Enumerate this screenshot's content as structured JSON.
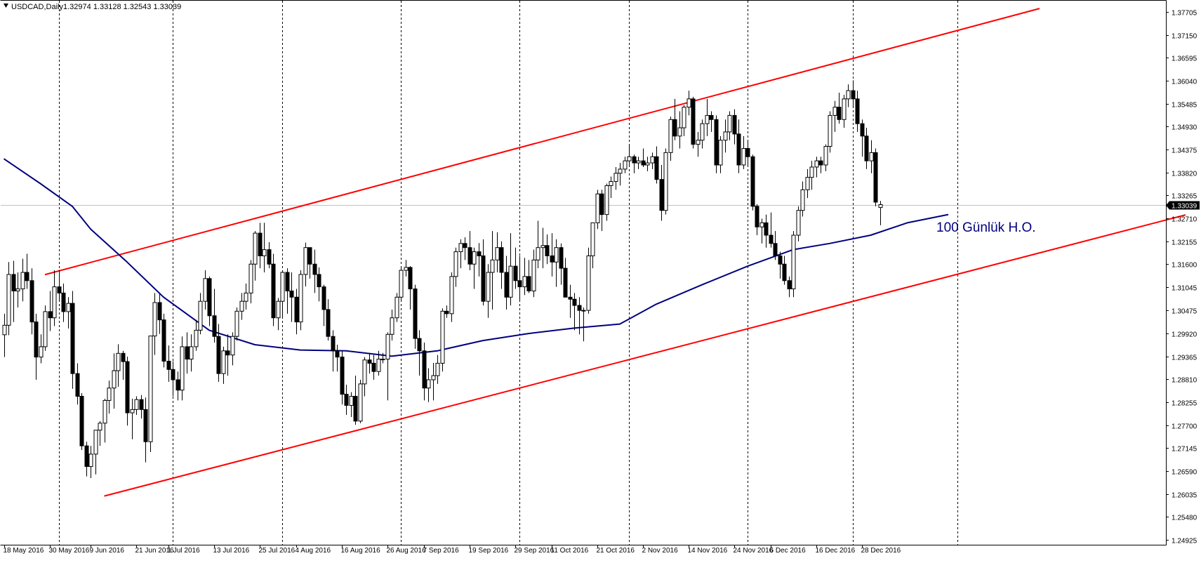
{
  "header": {
    "symbol": "USDCAD,Daily",
    "ohlc": "1.32974 1.33128 1.32543 1.33039"
  },
  "annotation": {
    "ma_label": "100 Günlük H.O."
  },
  "current_price_label": "1.33039",
  "colors": {
    "background": "#ffffff",
    "axis": "#000000",
    "grid": "#000000",
    "bull_candle": "#ffffff",
    "bear_candle": "#000000",
    "channel": "#ff0000",
    "moving_average": "#00007f",
    "annotation_text": "#00007f",
    "price_line": "#c0c0c0"
  },
  "chart_data": {
    "type": "candlestick",
    "symbol": "USDCAD",
    "timeframe": "Daily",
    "x_tick_labels": [
      "18 May 2016",
      "30 May 2016",
      "9 Jun 2016",
      "21 Jun 2016",
      "1 Jul 2016",
      "13 Jul 2016",
      "25 Jul 2016",
      "4 Aug 2016",
      "16 Aug 2016",
      "26 Aug 2016",
      "7 Sep 2016",
      "19 Sep 2016",
      "29 Sep 2016",
      "11 Oct 2016",
      "21 Oct 2016",
      "2 Nov 2016",
      "14 Nov 2016",
      "24 Nov 2016",
      "6 Dec 2016",
      "16 Dec 2016",
      "28 Dec 2016"
    ],
    "x_tick_bar_index": [
      0,
      10,
      19,
      29,
      36,
      46,
      56,
      64,
      74,
      84,
      92,
      102,
      112,
      120,
      130,
      140,
      150,
      160,
      168,
      178,
      188
    ],
    "y_ticks": [
      "1.37705",
      "1.37150",
      "1.36595",
      "1.36040",
      "1.35485",
      "1.34930",
      "1.34375",
      "1.33820",
      "1.33265",
      "1.32710",
      "1.32155",
      "1.31600",
      "1.31045",
      "1.30475",
      "1.29920",
      "1.29365",
      "1.28810",
      "1.28255",
      "1.27700",
      "1.27145",
      "1.26590",
      "1.26035",
      "1.25480",
      "1.24925"
    ],
    "ylim": [
      1.24925,
      1.37705
    ],
    "vertical_grid_bar_index": [
      12,
      37,
      61,
      87,
      113,
      137,
      163,
      186,
      209
    ],
    "last_price": 1.33039,
    "candles": [
      [
        1.2989,
        1.304,
        1.2935,
        1.3012
      ],
      [
        1.3012,
        1.3165,
        1.2988,
        1.3135
      ],
      [
        1.3135,
        1.3168,
        1.302,
        1.3095
      ],
      [
        1.3095,
        1.314,
        1.3055,
        1.31
      ],
      [
        1.31,
        1.3173,
        1.307,
        1.314
      ],
      [
        1.314,
        1.3185,
        1.31,
        1.312
      ],
      [
        1.312,
        1.315,
        1.299,
        1.302
      ],
      [
        1.302,
        1.304,
        1.288,
        1.2935
      ],
      [
        1.2935,
        1.299,
        1.292,
        1.296
      ],
      [
        1.296,
        1.306,
        1.295,
        1.3045
      ],
      [
        1.3045,
        1.3095,
        1.2998,
        1.303
      ],
      [
        1.303,
        1.3145,
        1.301,
        1.3105
      ],
      [
        1.3105,
        1.3146,
        1.307,
        1.309
      ],
      [
        1.309,
        1.3113,
        1.302,
        1.3045
      ],
      [
        1.3045,
        1.308,
        1.3004,
        1.3065
      ],
      [
        1.3065,
        1.3095,
        1.2858,
        1.2895
      ],
      [
        1.2895,
        1.292,
        1.282,
        1.284
      ],
      [
        1.284,
        1.2848,
        1.271,
        1.272
      ],
      [
        1.272,
        1.273,
        1.2646,
        1.267
      ],
      [
        1.267,
        1.272,
        1.2642,
        1.27
      ],
      [
        1.27,
        1.2753,
        1.2651,
        1.2758
      ],
      [
        1.2758,
        1.278,
        1.272,
        1.2775
      ],
      [
        1.2775,
        1.2834,
        1.2728,
        1.283
      ],
      [
        1.283,
        1.2878,
        1.2798,
        1.286
      ],
      [
        1.286,
        1.2944,
        1.281,
        1.2902
      ],
      [
        1.2902,
        1.2966,
        1.2863,
        1.2944
      ],
      [
        1.2944,
        1.295,
        1.288,
        1.2924
      ],
      [
        1.2924,
        1.2936,
        1.2769,
        1.28
      ],
      [
        1.28,
        1.2834,
        1.2736,
        1.2808
      ],
      [
        1.2808,
        1.284,
        1.2795,
        1.2832
      ],
      [
        1.2832,
        1.2843,
        1.2786,
        1.2808
      ],
      [
        1.2808,
        1.2837,
        1.268,
        1.273
      ],
      [
        1.273,
        1.2986,
        1.2705,
        1.2986
      ],
      [
        1.2986,
        1.309,
        1.294,
        1.3067
      ],
      [
        1.3067,
        1.3091,
        1.2991,
        1.3025
      ],
      [
        1.3025,
        1.304,
        1.291,
        1.2925
      ],
      [
        1.2925,
        1.2963,
        1.2875,
        1.2905
      ],
      [
        1.2905,
        1.2925,
        1.284,
        1.288
      ],
      [
        1.288,
        1.29,
        1.283,
        1.2855
      ],
      [
        1.2855,
        1.2985,
        1.283,
        1.296
      ],
      [
        1.296,
        1.2995,
        1.2895,
        1.293
      ],
      [
        1.293,
        1.299,
        1.29,
        1.296
      ],
      [
        1.296,
        1.3025,
        1.295,
        1.3
      ],
      [
        1.3,
        1.309,
        1.299,
        1.307
      ],
      [
        1.307,
        1.3145,
        1.305,
        1.3125
      ],
      [
        1.3125,
        1.313,
        1.301,
        1.3035
      ],
      [
        1.3035,
        1.31,
        1.297,
        1.2985
      ],
      [
        1.2985,
        1.3015,
        1.2875,
        1.2895
      ],
      [
        1.2895,
        1.296,
        1.287,
        1.295
      ],
      [
        1.295,
        1.299,
        1.289,
        1.294
      ],
      [
        1.294,
        1.2995,
        1.2915,
        1.2985
      ],
      [
        1.2985,
        1.3055,
        1.2975,
        1.3046
      ],
      [
        1.3046,
        1.309,
        1.3025,
        1.307
      ],
      [
        1.307,
        1.3113,
        1.305,
        1.309
      ],
      [
        1.309,
        1.317,
        1.3065,
        1.316
      ],
      [
        1.316,
        1.324,
        1.312,
        1.3235
      ],
      [
        1.3235,
        1.326,
        1.315,
        1.318
      ],
      [
        1.318,
        1.326,
        1.314,
        1.3195
      ],
      [
        1.3195,
        1.3213,
        1.315,
        1.316
      ],
      [
        1.316,
        1.3185,
        1.301,
        1.303
      ],
      [
        1.303,
        1.3078,
        1.3,
        1.307
      ],
      [
        1.307,
        1.3145,
        1.303,
        1.314
      ],
      [
        1.314,
        1.315,
        1.304,
        1.3095
      ],
      [
        1.3095,
        1.314,
        1.302,
        1.308
      ],
      [
        1.308,
        1.31,
        1.299,
        1.302
      ],
      [
        1.302,
        1.3145,
        1.3,
        1.3135
      ],
      [
        1.3135,
        1.3212,
        1.3106,
        1.32
      ],
      [
        1.32,
        1.32,
        1.3125,
        1.316
      ],
      [
        1.316,
        1.3195,
        1.309,
        1.3135
      ],
      [
        1.3135,
        1.3152,
        1.307,
        1.3105
      ],
      [
        1.3105,
        1.311,
        1.301,
        1.305
      ],
      [
        1.305,
        1.3075,
        1.2975,
        1.2985
      ],
      [
        1.2985,
        1.3,
        1.29,
        1.295
      ],
      [
        1.295,
        1.2965,
        1.29,
        1.2935
      ],
      [
        1.2935,
        1.295,
        1.282,
        1.2845
      ],
      [
        1.2845,
        1.2868,
        1.2795,
        1.2818
      ],
      [
        1.2818,
        1.285,
        1.279,
        1.284
      ],
      [
        1.284,
        1.289,
        1.2771,
        1.278
      ],
      [
        1.278,
        1.288,
        1.2775,
        1.287
      ],
      [
        1.287,
        1.2935,
        1.284,
        1.2928
      ],
      [
        1.2928,
        1.2945,
        1.2895,
        1.292
      ],
      [
        1.292,
        1.294,
        1.288,
        1.29
      ],
      [
        1.29,
        1.295,
        1.289,
        1.293
      ],
      [
        1.293,
        1.2945,
        1.292,
        1.293
      ],
      [
        1.293,
        1.2995,
        1.283,
        1.299
      ],
      [
        1.299,
        1.305,
        1.2975,
        1.303
      ],
      [
        1.303,
        1.309,
        1.302,
        1.308
      ],
      [
        1.308,
        1.3155,
        1.307,
        1.3145
      ],
      [
        1.3145,
        1.317,
        1.313,
        1.3152
      ],
      [
        1.3152,
        1.3155,
        1.305,
        1.31
      ],
      [
        1.31,
        1.311,
        1.2955,
        1.298
      ],
      [
        1.298,
        1.3,
        1.289,
        1.295
      ],
      [
        1.295,
        1.297,
        1.283,
        1.286
      ],
      [
        1.286,
        1.2908,
        1.2826,
        1.288
      ],
      [
        1.288,
        1.2921,
        1.283,
        1.289
      ],
      [
        1.289,
        1.294,
        1.287,
        1.292
      ],
      [
        1.292,
        1.3053,
        1.29,
        1.3046
      ],
      [
        1.3046,
        1.306,
        1.303,
        1.304
      ],
      [
        1.304,
        1.314,
        1.302,
        1.313
      ],
      [
        1.313,
        1.32,
        1.3105,
        1.319
      ],
      [
        1.319,
        1.322,
        1.315,
        1.321
      ],
      [
        1.321,
        1.3225,
        1.317,
        1.32
      ],
      [
        1.32,
        1.324,
        1.3145,
        1.316
      ],
      [
        1.316,
        1.32,
        1.31,
        1.319
      ],
      [
        1.319,
        1.3211,
        1.313,
        1.318
      ],
      [
        1.318,
        1.322,
        1.306,
        1.307
      ],
      [
        1.307,
        1.316,
        1.303,
        1.314
      ],
      [
        1.314,
        1.324,
        1.305,
        1.317
      ],
      [
        1.317,
        1.3237,
        1.314,
        1.32
      ],
      [
        1.32,
        1.3215,
        1.31,
        1.314
      ],
      [
        1.314,
        1.318,
        1.305,
        1.308
      ],
      [
        1.308,
        1.3235,
        1.306,
        1.3155
      ],
      [
        1.3155,
        1.32,
        1.31,
        1.312
      ],
      [
        1.312,
        1.318,
        1.307,
        1.3105
      ],
      [
        1.3105,
        1.3175,
        1.3085,
        1.313
      ],
      [
        1.313,
        1.317,
        1.309,
        1.3095
      ],
      [
        1.3095,
        1.3195,
        1.308,
        1.317
      ],
      [
        1.317,
        1.3265,
        1.315,
        1.32
      ],
      [
        1.32,
        1.3248,
        1.315,
        1.3205
      ],
      [
        1.3205,
        1.3232,
        1.316,
        1.318
      ],
      [
        1.318,
        1.3235,
        1.313,
        1.3165
      ],
      [
        1.3165,
        1.322,
        1.3105,
        1.32
      ],
      [
        1.32,
        1.321,
        1.311,
        1.315
      ],
      [
        1.315,
        1.3175,
        1.308,
        1.308
      ],
      [
        1.308,
        1.311,
        1.303,
        1.3075
      ],
      [
        1.3075,
        1.309,
        1.3,
        1.306
      ],
      [
        1.306,
        1.308,
        1.299,
        1.3048
      ],
      [
        1.3048,
        1.3055,
        1.2973,
        1.3048
      ],
      [
        1.3048,
        1.32,
        1.304,
        1.318
      ],
      [
        1.318,
        1.326,
        1.315,
        1.326
      ],
      [
        1.326,
        1.334,
        1.3245,
        1.333
      ],
      [
        1.333,
        1.334,
        1.324,
        1.328
      ],
      [
        1.328,
        1.3355,
        1.3265,
        1.335
      ],
      [
        1.335,
        1.3372,
        1.332,
        1.336
      ],
      [
        1.336,
        1.3395,
        1.334,
        1.338
      ],
      [
        1.338,
        1.3405,
        1.335,
        1.339
      ],
      [
        1.339,
        1.342,
        1.338,
        1.341
      ],
      [
        1.341,
        1.345,
        1.34,
        1.342
      ],
      [
        1.342,
        1.3425,
        1.338,
        1.3405
      ],
      [
        1.3405,
        1.342,
        1.339,
        1.341
      ],
      [
        1.341,
        1.344,
        1.3395,
        1.34
      ],
      [
        1.34,
        1.342,
        1.3385,
        1.3405
      ],
      [
        1.3405,
        1.343,
        1.339,
        1.342
      ],
      [
        1.342,
        1.3445,
        1.3355,
        1.3365
      ],
      [
        1.3365,
        1.34,
        1.3265,
        1.329
      ],
      [
        1.329,
        1.344,
        1.328,
        1.343
      ],
      [
        1.343,
        1.3517,
        1.341,
        1.351
      ],
      [
        1.351,
        1.356,
        1.346,
        1.347
      ],
      [
        1.347,
        1.353,
        1.344,
        1.349
      ],
      [
        1.349,
        1.3545,
        1.347,
        1.354
      ],
      [
        1.354,
        1.358,
        1.352,
        1.356
      ],
      [
        1.356,
        1.3565,
        1.344,
        1.345
      ],
      [
        1.345,
        1.348,
        1.342,
        1.346
      ],
      [
        1.346,
        1.351,
        1.344,
        1.35
      ],
      [
        1.35,
        1.356,
        1.347,
        1.352
      ],
      [
        1.352,
        1.353,
        1.348,
        1.351
      ],
      [
        1.351,
        1.352,
        1.338,
        1.34
      ],
      [
        1.34,
        1.347,
        1.338,
        1.346
      ],
      [
        1.346,
        1.351,
        1.343,
        1.348
      ],
      [
        1.348,
        1.353,
        1.346,
        1.352
      ],
      [
        1.352,
        1.3535,
        1.345,
        1.3475
      ],
      [
        1.3475,
        1.351,
        1.338,
        1.34
      ],
      [
        1.34,
        1.347,
        1.339,
        1.344
      ],
      [
        1.344,
        1.346,
        1.34,
        1.342
      ],
      [
        1.342,
        1.3425,
        1.329,
        1.33
      ],
      [
        1.33,
        1.3305,
        1.323,
        1.325
      ],
      [
        1.325,
        1.327,
        1.321,
        1.326
      ],
      [
        1.326,
        1.328,
        1.32,
        1.323
      ],
      [
        1.323,
        1.3285,
        1.32,
        1.321
      ],
      [
        1.321,
        1.324,
        1.317,
        1.318
      ],
      [
        1.318,
        1.319,
        1.3125,
        1.316
      ],
      [
        1.316,
        1.318,
        1.311,
        1.312
      ],
      [
        1.312,
        1.313,
        1.308,
        1.31
      ],
      [
        1.31,
        1.324,
        1.308,
        1.323
      ],
      [
        1.323,
        1.33,
        1.3215,
        1.329
      ],
      [
        1.329,
        1.336,
        1.3275,
        1.334
      ],
      [
        1.334,
        1.339,
        1.332,
        1.337
      ],
      [
        1.337,
        1.341,
        1.334,
        1.3395
      ],
      [
        1.3395,
        1.342,
        1.337,
        1.341
      ],
      [
        1.341,
        1.342,
        1.338,
        1.34
      ],
      [
        1.34,
        1.345,
        1.3385,
        1.3445
      ],
      [
        1.3445,
        1.353,
        1.343,
        1.352
      ],
      [
        1.352,
        1.3555,
        1.348,
        1.354
      ],
      [
        1.354,
        1.3575,
        1.35,
        1.351
      ],
      [
        1.351,
        1.357,
        1.349,
        1.356
      ],
      [
        1.356,
        1.3595,
        1.354,
        1.358
      ],
      [
        1.358,
        1.3605,
        1.354,
        1.356
      ],
      [
        1.356,
        1.358,
        1.348,
        1.35
      ],
      [
        1.35,
        1.351,
        1.342,
        1.347
      ],
      [
        1.347,
        1.349,
        1.339,
        1.341
      ],
      [
        1.341,
        1.346,
        1.338,
        1.343
      ],
      [
        1.343,
        1.344,
        1.33,
        1.331
      ],
      [
        1.3297,
        1.3313,
        1.3254,
        1.3304
      ]
    ],
    "sma100": [
      [
        0,
        1.3415
      ],
      [
        8,
        1.3355
      ],
      [
        15,
        1.33
      ],
      [
        19,
        1.3245
      ],
      [
        27,
        1.3165
      ],
      [
        35,
        1.308
      ],
      [
        45,
        1.3
      ],
      [
        55,
        1.2965
      ],
      [
        65,
        1.2952
      ],
      [
        75,
        1.295
      ],
      [
        85,
        1.2937
      ],
      [
        95,
        1.295
      ],
      [
        105,
        1.2975
      ],
      [
        115,
        1.2992
      ],
      [
        125,
        1.3005
      ],
      [
        135,
        1.3015
      ],
      [
        143,
        1.3063
      ],
      [
        153,
        1.311
      ],
      [
        163,
        1.3155
      ],
      [
        173,
        1.3195
      ],
      [
        181,
        1.321
      ],
      [
        190,
        1.323
      ],
      [
        198,
        1.326
      ],
      [
        207,
        1.328
      ]
    ],
    "channel_upper": {
      "start": [
        9,
        1.31345
      ],
      "end": [
        227,
        1.37788
      ]
    },
    "channel_lower": {
      "start": [
        22,
        1.25985
      ],
      "end": [
        259,
        1.32791
      ]
    }
  }
}
